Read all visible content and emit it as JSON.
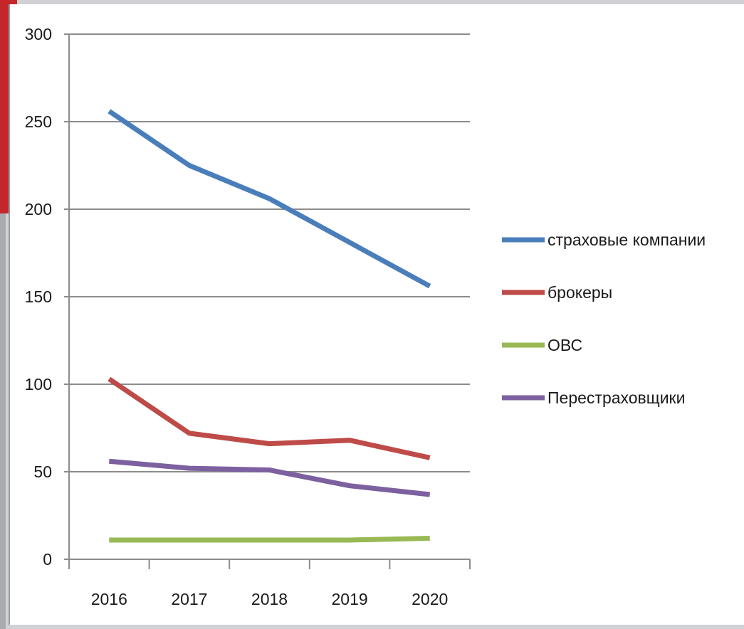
{
  "chart_data": {
    "type": "line",
    "title": "",
    "xlabel": "",
    "ylabel": "",
    "categories": [
      "2016",
      "2017",
      "2018",
      "2019",
      "2020"
    ],
    "ylim": [
      0,
      300
    ],
    "yticks": [
      0,
      50,
      100,
      150,
      200,
      250,
      300
    ],
    "grid": true,
    "legend_position": "right",
    "series": [
      {
        "name": "страховые компании",
        "color": "#4a7ebb",
        "values": [
          256,
          225,
          206,
          181,
          156
        ]
      },
      {
        "name": "брокеры",
        "color": "#be4b48",
        "values": [
          103,
          72,
          66,
          68,
          58
        ]
      },
      {
        "name": "ОВС",
        "color": "#98b954",
        "values": [
          11,
          11,
          11,
          11,
          12
        ]
      },
      {
        "name": "Перестраховщики",
        "color": "#7d60a0",
        "values": [
          56,
          52,
          51,
          42,
          37
        ]
      }
    ]
  }
}
